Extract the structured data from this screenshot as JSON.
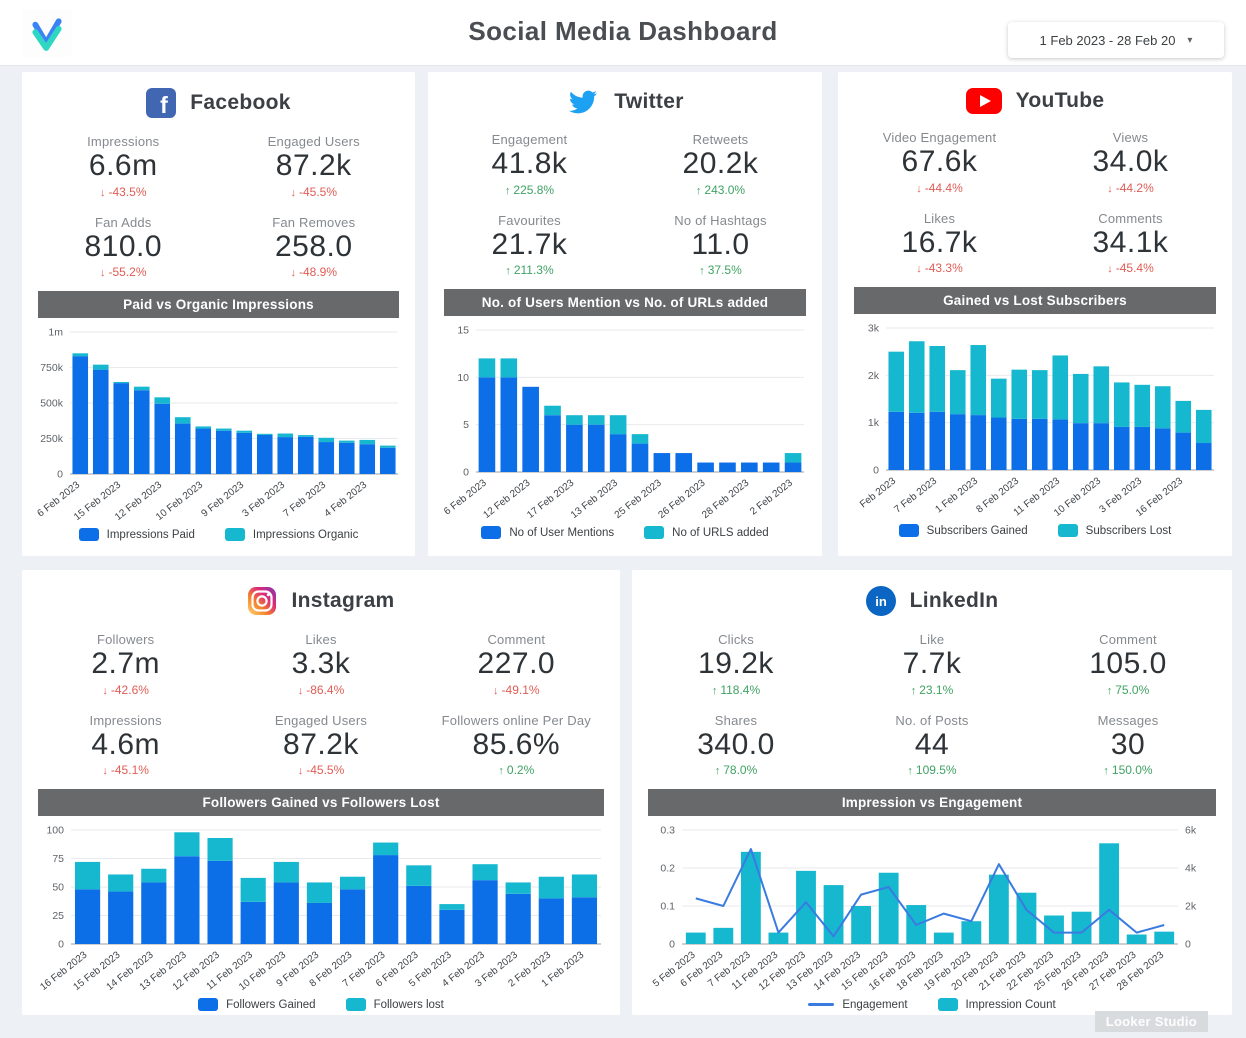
{
  "header": {
    "title": "Social Media Dashboard",
    "logo_name": "vbout-logo",
    "date_range": {
      "value": "1 Feb 2023 - 28 Feb 20",
      "caret": "▾"
    }
  },
  "watermark": "Looker Studio",
  "colors": {
    "bar_primary": "#0d6fe8",
    "bar_secondary": "#16b8cf",
    "line": "#3a7be0",
    "delta_up": "#3fa263",
    "delta_down": "#e05c54",
    "chart_title_bar": "#67696b",
    "facebook_brand": "#4267b2",
    "twitter_brand": "#1da1f2",
    "youtube_brand": "#ff0000",
    "instagram_brand": "#dd2a7b",
    "linkedin_brand": "#0a66c2"
  },
  "panels": {
    "facebook": {
      "title": "Facebook",
      "metrics": [
        {
          "label": "Impressions",
          "value": "6.6m",
          "delta": "-43.5%",
          "dir": "down"
        },
        {
          "label": "Engaged Users",
          "value": "87.2k",
          "delta": "-45.5%",
          "dir": "down"
        },
        {
          "label": "Fan Adds",
          "value": "810.0",
          "delta": "-55.2%",
          "dir": "down"
        },
        {
          "label": "Fan Removes",
          "value": "258.0",
          "delta": "-48.9%",
          "dir": "down"
        }
      ]
    },
    "twitter": {
      "title": "Twitter",
      "metrics": [
        {
          "label": "Engagement",
          "value": "41.8k",
          "delta": "225.8%",
          "dir": "up"
        },
        {
          "label": "Retweets",
          "value": "20.2k",
          "delta": "243.0%",
          "dir": "up"
        },
        {
          "label": "Favourites",
          "value": "21.7k",
          "delta": "211.3%",
          "dir": "up"
        },
        {
          "label": "No of Hashtags",
          "value": "11.0",
          "delta": "37.5%",
          "dir": "up"
        }
      ]
    },
    "youtube": {
      "title": "YouTube",
      "metrics": [
        {
          "label": "Video Engagement",
          "value": "67.6k",
          "delta": "-44.4%",
          "dir": "down"
        },
        {
          "label": "Views",
          "value": "34.0k",
          "delta": "-44.2%",
          "dir": "down"
        },
        {
          "label": "Likes",
          "value": "16.7k",
          "delta": "-43.3%",
          "dir": "down"
        },
        {
          "label": "Comments",
          "value": "34.1k",
          "delta": "-45.4%",
          "dir": "down"
        }
      ]
    },
    "instagram": {
      "title": "Instagram",
      "metrics": [
        {
          "label": "Followers",
          "value": "2.7m",
          "delta": "-42.6%",
          "dir": "down"
        },
        {
          "label": "Likes",
          "value": "3.3k",
          "delta": "-86.4%",
          "dir": "down"
        },
        {
          "label": "Comment",
          "value": "227.0",
          "delta": "-49.1%",
          "dir": "down"
        },
        {
          "label": "Impressions",
          "value": "4.6m",
          "delta": "-45.1%",
          "dir": "down"
        },
        {
          "label": "Engaged Users",
          "value": "87.2k",
          "delta": "-45.5%",
          "dir": "down"
        },
        {
          "label": "Followers online Per Day",
          "value": "85.6%",
          "delta": "0.2%",
          "dir": "up"
        }
      ]
    },
    "linkedin": {
      "title": "LinkedIn",
      "metrics": [
        {
          "label": "Clicks",
          "value": "19.2k",
          "delta": "118.4%",
          "dir": "up"
        },
        {
          "label": "Like",
          "value": "7.7k",
          "delta": "23.1%",
          "dir": "up"
        },
        {
          "label": "Comment",
          "value": "105.0",
          "delta": "75.0%",
          "dir": "up"
        },
        {
          "label": "Shares",
          "value": "340.0",
          "delta": "78.0%",
          "dir": "up"
        },
        {
          "label": "No. of Posts",
          "value": "44",
          "delta": "109.5%",
          "dir": "up"
        },
        {
          "label": "Messages",
          "value": "30",
          "delta": "150.0%",
          "dir": "up"
        }
      ]
    }
  },
  "chart_data": [
    {
      "id": "facebook",
      "type": "bar",
      "stacked": true,
      "title": "Paid vs Organic Impressions",
      "value_unit": "thousands",
      "ylim": [
        0,
        1000
      ],
      "yticks": [
        {
          "v": 0,
          "label": "0"
        },
        {
          "v": 250,
          "label": "250k"
        },
        {
          "v": 500,
          "label": "500k"
        },
        {
          "v": 750,
          "label": "750k"
        },
        {
          "v": 1000,
          "label": "1m"
        }
      ],
      "x_labels": [
        "6 Feb 2023",
        "15 Feb 2023",
        "12 Feb 2023",
        "10 Feb 2023",
        "9 Feb 2023",
        "3 Feb 2023",
        "7 Feb 2023",
        "4 Feb 2023"
      ],
      "label_every": 2,
      "series": [
        {
          "name": "Impressions Paid",
          "values": [
            830,
            735,
            640,
            590,
            495,
            355,
            320,
            305,
            290,
            275,
            260,
            262,
            225,
            220,
            210,
            185
          ]
        },
        {
          "name": "Impressions Organic",
          "values": [
            20,
            35,
            8,
            25,
            45,
            45,
            15,
            15,
            15,
            8,
            25,
            12,
            30,
            15,
            30,
            15
          ]
        }
      ]
    },
    {
      "id": "twitter",
      "type": "bar",
      "stacked": true,
      "title": "No. of Users Mention vs No. of URLs added",
      "ylim": [
        0,
        15
      ],
      "yticks": [
        {
          "v": 0,
          "label": "0"
        },
        {
          "v": 5,
          "label": "5"
        },
        {
          "v": 10,
          "label": "10"
        },
        {
          "v": 15,
          "label": "15"
        }
      ],
      "x_labels": [
        "6 Feb 2023",
        "12 Feb 2023",
        "17 Feb 2023",
        "13 Feb 2023",
        "25 Feb 2023",
        "26 Feb 2023",
        "28 Feb 2023",
        "2 Feb 2023"
      ],
      "label_every": 2,
      "series": [
        {
          "name": "No of User Mentions",
          "values": [
            10,
            10,
            9,
            6,
            5,
            5,
            4,
            3,
            2,
            2,
            1,
            1,
            1,
            1,
            1
          ]
        },
        {
          "name": "No of URLS added",
          "values": [
            2,
            2,
            0,
            1,
            1,
            1,
            2,
            1,
            0,
            0,
            0,
            0,
            0,
            0,
            1
          ]
        }
      ]
    },
    {
      "id": "youtube",
      "type": "bar",
      "stacked": true,
      "title": "Gained vs Lost Subscribers",
      "ylim": [
        0,
        3000
      ],
      "yticks": [
        {
          "v": 0,
          "label": "0"
        },
        {
          "v": 1000,
          "label": "1k"
        },
        {
          "v": 2000,
          "label": "2k"
        },
        {
          "v": 3000,
          "label": "3k"
        }
      ],
      "x_labels": [
        "Feb 2023",
        "7 Feb 2023",
        "1 Feb 2023",
        "8 Feb 2023",
        "11 Feb 2023",
        "10 Feb 2023",
        "3 Feb 2023",
        "16 Feb 2023"
      ],
      "label_every": 2,
      "series": [
        {
          "name": "Subscribers Gained",
          "values": [
            1230,
            1210,
            1230,
            1180,
            1160,
            1110,
            1080,
            1080,
            1070,
            990,
            990,
            910,
            910,
            880,
            790,
            570
          ]
        },
        {
          "name": "Subscribers Lost",
          "values": [
            1270,
            1510,
            1390,
            930,
            1480,
            820,
            1040,
            1030,
            1350,
            1040,
            1200,
            940,
            890,
            890,
            670,
            700
          ]
        }
      ]
    },
    {
      "id": "instagram",
      "type": "bar",
      "stacked": true,
      "title": "Followers Gained vs Followers Lost",
      "ylim": [
        0,
        100
      ],
      "yticks": [
        {
          "v": 0,
          "label": "0"
        },
        {
          "v": 25,
          "label": "25"
        },
        {
          "v": 50,
          "label": "50"
        },
        {
          "v": 75,
          "label": "75"
        },
        {
          "v": 100,
          "label": "100"
        }
      ],
      "x_labels": [
        "16 Feb 2023",
        "15 Feb 2023",
        "14 Feb 2023",
        "13 Feb 2023",
        "12 Feb 2023",
        "11 Feb 2023",
        "10 Feb 2023",
        "9 Feb 2023",
        "8 Feb 2023",
        "7 Feb 2023",
        "6 Feb 2023",
        "5 Feb 2023",
        "4 Feb 2023",
        "3 Feb 2023",
        "2 Feb 2023",
        "1 Feb 2023"
      ],
      "label_every": 1,
      "series": [
        {
          "name": "Followers Gained",
          "values": [
            48,
            46,
            54,
            77,
            73,
            37,
            54,
            36,
            48,
            78,
            51,
            30,
            56,
            44,
            40,
            41
          ]
        },
        {
          "name": "Followers lost",
          "values": [
            24,
            15,
            12,
            21,
            20,
            21,
            18,
            18,
            11,
            11,
            18,
            5,
            14,
            10,
            19,
            20
          ]
        }
      ]
    },
    {
      "id": "linkedin",
      "type": "combo",
      "title": "Impression vs Engagement",
      "ylim_left": [
        0,
        0.3
      ],
      "ylim_right": [
        0,
        6000
      ],
      "yticks_left": [
        {
          "v": 0,
          "label": "0"
        },
        {
          "v": 0.1,
          "label": "0.1"
        },
        {
          "v": 0.2,
          "label": "0.2"
        },
        {
          "v": 0.3,
          "label": "0.3"
        }
      ],
      "yticks_right": [
        {
          "v": 0,
          "label": "0"
        },
        {
          "v": 2000,
          "label": "2k"
        },
        {
          "v": 4000,
          "label": "4k"
        },
        {
          "v": 6000,
          "label": "6k"
        }
      ],
      "x_labels": [
        "5 Feb 2023",
        "6 Feb 2023",
        "7 Feb 2023",
        "11 Feb 2023",
        "12 Feb 2023",
        "13 Feb 2023",
        "14 Feb 2023",
        "15 Feb 2023",
        "16 Feb 2023",
        "18 Feb 2023",
        "19 Feb 2023",
        "20 Feb 2023",
        "21 Feb 2023",
        "22 Feb 2023",
        "25 Feb 2023",
        "26 Feb 2023",
        "27 Feb 2023",
        "28 Feb 2023"
      ],
      "label_every": 1,
      "series": [
        {
          "name": "Engagement",
          "type": "line",
          "axis": "left",
          "values": [
            0.12,
            0.1,
            0.25,
            0.03,
            0.11,
            0.02,
            0.13,
            0.15,
            0.05,
            0.08,
            0.06,
            0.21,
            0.09,
            0.03,
            0.03,
            0.09,
            0.03,
            0.05
          ]
        },
        {
          "name": "Impression Count",
          "type": "bar",
          "axis": "right",
          "values": [
            600,
            850,
            4850,
            600,
            3850,
            3100,
            2000,
            3750,
            2050,
            600,
            1200,
            3650,
            2700,
            1500,
            1700,
            5300,
            500,
            650
          ]
        }
      ]
    }
  ]
}
